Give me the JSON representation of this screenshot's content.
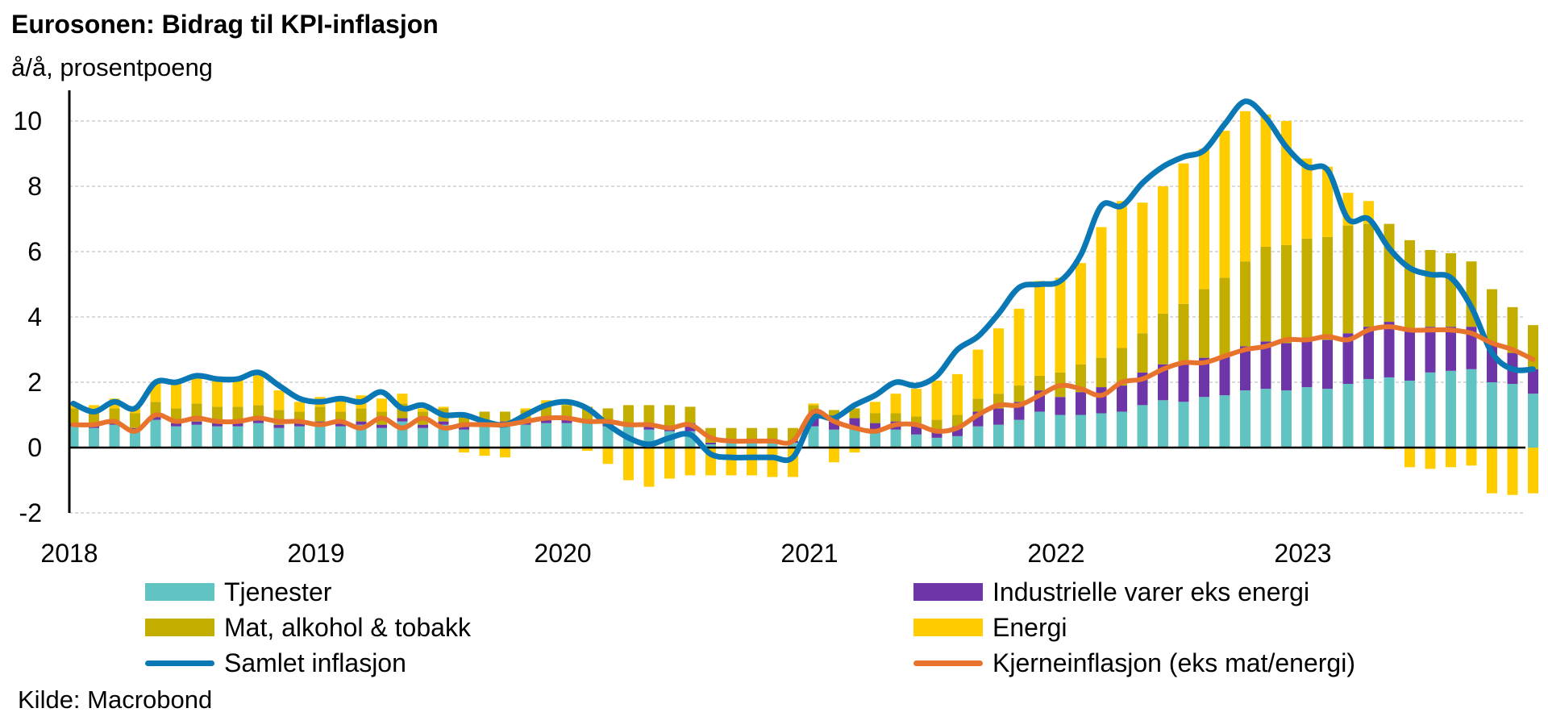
{
  "title": "Eurosonen: Bidrag til KPI-inflasjon",
  "subtitle": "å/å, prosentpoeng",
  "source": "Kilde: Macrobond",
  "colors": {
    "tjenester": "#62C3C3",
    "industrielle": "#6E35A8",
    "mat": "#C3AE00",
    "energi": "#FFCC00",
    "samlet": "#0A78B4",
    "kjerne": "#E8732D"
  },
  "legend": [
    {
      "key": "tjenester",
      "label": "Tjenester",
      "kind": "box"
    },
    {
      "key": "mat",
      "label": "Mat, alkohol & tobakk",
      "kind": "box"
    },
    {
      "key": "samlet",
      "label": "Samlet inflasjon",
      "kind": "line"
    },
    {
      "key": "industrielle",
      "label": "Industrielle varer eks energi",
      "kind": "box"
    },
    {
      "key": "energi",
      "label": "Energi",
      "kind": "box"
    },
    {
      "key": "kjerne",
      "label": "Kjerneinflasjon (eks mat/energi)",
      "kind": "line"
    }
  ],
  "chart_data": {
    "type": "bar",
    "stacked": true,
    "x_start": "2018-01",
    "x_end": "2023-11",
    "xticks": [
      "2018",
      "2019",
      "2020",
      "2021",
      "2022",
      "2023"
    ],
    "yticks": [
      "-2",
      "0",
      "2",
      "4",
      "6",
      "8",
      "10"
    ],
    "ylim": [
      -2,
      11
    ],
    "grid": true,
    "series": [
      {
        "name": "Tjenester",
        "key": "tjenester",
        "values": [
          0.65,
          0.6,
          0.7,
          0.5,
          0.85,
          0.65,
          0.7,
          0.65,
          0.65,
          0.75,
          0.6,
          0.65,
          0.7,
          0.65,
          0.7,
          0.6,
          0.8,
          0.6,
          0.7,
          0.55,
          0.65,
          0.7,
          0.7,
          0.75,
          0.75,
          0.75,
          0.65,
          0.65,
          0.55,
          0.5,
          0.5,
          0.1,
          0.15,
          0.15,
          0.15,
          0.15,
          0.65,
          0.55,
          0.6,
          0.45,
          0.55,
          0.4,
          0.3,
          0.35,
          0.65,
          0.7,
          0.85,
          1.1,
          1.0,
          1.0,
          1.05,
          1.1,
          1.3,
          1.45,
          1.4,
          1.55,
          1.6,
          1.75,
          1.8,
          1.75,
          1.85,
          1.8,
          1.95,
          2.1,
          2.15,
          2.05,
          2.3,
          2.35,
          2.4,
          2.0,
          1.95,
          1.65
        ]
      },
      {
        "name": "Industrielle varer eks energi",
        "key": "industrielle",
        "values": [
          0.1,
          0.1,
          0.1,
          0.1,
          0.1,
          0.1,
          0.1,
          0.1,
          0.1,
          0.1,
          0.1,
          0.1,
          0.1,
          0.1,
          0.1,
          0.1,
          0.1,
          0.1,
          0.1,
          0.1,
          0.1,
          0.1,
          0.1,
          0.1,
          0.1,
          0.1,
          0.1,
          0.1,
          0.1,
          0.1,
          0.25,
          0.05,
          0.05,
          0.05,
          0.05,
          0.05,
          0.4,
          0.3,
          0.3,
          0.3,
          0.25,
          0.3,
          0.25,
          0.3,
          0.45,
          0.5,
          0.55,
          0.65,
          0.55,
          0.7,
          0.8,
          0.8,
          1.0,
          1.1,
          1.15,
          1.2,
          1.2,
          1.35,
          1.45,
          1.45,
          1.45,
          1.5,
          1.55,
          1.6,
          1.7,
          1.55,
          1.4,
          1.35,
          1.3,
          1.2,
          0.95,
          0.75
        ]
      },
      {
        "name": "Mat, alkohol & tobakk",
        "key": "mat",
        "values": [
          0.45,
          0.45,
          0.4,
          0.45,
          0.45,
          0.45,
          0.55,
          0.5,
          0.5,
          0.45,
          0.45,
          0.35,
          0.45,
          0.35,
          0.4,
          0.4,
          0.45,
          0.4,
          0.4,
          0.4,
          0.35,
          0.3,
          0.35,
          0.45,
          0.45,
          0.4,
          0.45,
          0.55,
          0.65,
          0.7,
          0.5,
          0.45,
          0.4,
          0.4,
          0.4,
          0.4,
          0.25,
          0.3,
          0.3,
          0.3,
          0.25,
          0.25,
          0.3,
          0.35,
          0.4,
          0.45,
          0.5,
          0.45,
          0.75,
          0.85,
          0.9,
          1.15,
          1.2,
          1.55,
          1.85,
          2.1,
          2.4,
          2.6,
          2.9,
          3.0,
          3.1,
          3.15,
          3.3,
          3.15,
          3.0,
          2.75,
          2.35,
          2.25,
          2.0,
          1.65,
          1.4,
          1.35
        ]
      },
      {
        "name": "Energi",
        "key": "energi",
        "values": [
          0.15,
          0.15,
          0.3,
          0.2,
          0.6,
          0.75,
          0.8,
          0.85,
          0.9,
          1.0,
          0.6,
          0.3,
          0.3,
          0.4,
          0.4,
          0.4,
          0.3,
          0.1,
          0.05,
          -0.15,
          -0.25,
          -0.3,
          0.05,
          0.15,
          0.1,
          -0.1,
          -0.5,
          -1.0,
          -1.2,
          -0.95,
          -0.85,
          -0.85,
          -0.85,
          -0.85,
          -0.9,
          -0.9,
          0.05,
          -0.45,
          -0.15,
          0.35,
          0.6,
          0.85,
          1.2,
          1.25,
          1.5,
          2.0,
          2.35,
          2.9,
          2.9,
          3.1,
          4.0,
          4.5,
          4.0,
          3.9,
          4.3,
          4.3,
          4.5,
          4.6,
          4.05,
          3.8,
          2.45,
          2.15,
          1.0,
          0.7,
          -0.05,
          -0.6,
          -0.65,
          -0.6,
          -0.55,
          -1.4,
          -1.45,
          -1.4
        ]
      },
      {
        "name": "Samlet inflasjon",
        "key": "samlet",
        "type": "line",
        "values": [
          1.35,
          1.1,
          1.4,
          1.2,
          2.0,
          2.0,
          2.2,
          2.1,
          2.1,
          2.3,
          1.9,
          1.5,
          1.4,
          1.5,
          1.4,
          1.7,
          1.2,
          1.3,
          1.0,
          1.0,
          0.8,
          0.7,
          1.0,
          1.3,
          1.4,
          1.2,
          0.7,
          0.3,
          0.1,
          0.3,
          0.4,
          -0.2,
          -0.3,
          -0.3,
          -0.3,
          -0.3,
          0.9,
          0.9,
          1.3,
          1.6,
          2.0,
          1.9,
          2.2,
          3.0,
          3.4,
          4.1,
          4.9,
          5.0,
          5.1,
          5.9,
          7.4,
          7.4,
          8.1,
          8.6,
          8.9,
          9.1,
          9.9,
          10.6,
          10.1,
          9.2,
          8.6,
          8.5,
          7.0,
          7.0,
          6.1,
          5.5,
          5.3,
          5.2,
          4.3,
          2.9,
          2.4,
          2.4
        ]
      },
      {
        "name": "Kjerneinflasjon (eks mat/energi)",
        "key": "kjerne",
        "type": "line",
        "values": [
          0.7,
          0.7,
          0.8,
          0.5,
          1.0,
          0.8,
          0.9,
          0.8,
          0.8,
          0.9,
          0.8,
          0.8,
          0.7,
          0.8,
          0.6,
          0.9,
          0.6,
          0.9,
          0.6,
          0.7,
          0.7,
          0.7,
          0.8,
          0.9,
          0.9,
          0.8,
          0.8,
          0.7,
          0.7,
          0.6,
          0.7,
          0.3,
          0.2,
          0.2,
          0.2,
          0.2,
          1.1,
          0.8,
          0.6,
          0.5,
          0.7,
          0.7,
          0.5,
          0.6,
          1.0,
          1.3,
          1.3,
          1.6,
          1.9,
          1.8,
          1.6,
          2.0,
          2.1,
          2.4,
          2.6,
          2.6,
          2.8,
          3.0,
          3.1,
          3.3,
          3.3,
          3.4,
          3.3,
          3.6,
          3.7,
          3.6,
          3.6,
          3.6,
          3.5,
          3.2,
          3.0,
          2.7
        ]
      }
    ]
  }
}
